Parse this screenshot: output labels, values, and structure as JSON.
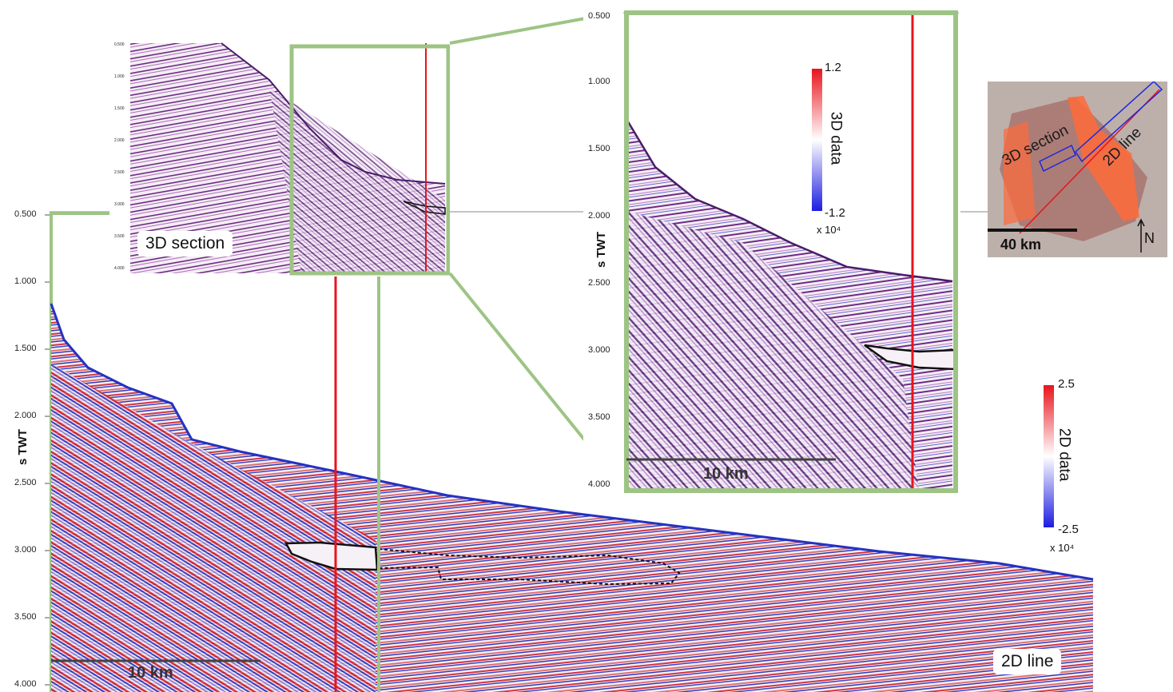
{
  "main_section": {
    "title": "2D line",
    "axis_label": "s TWT",
    "yticks": [
      "0.500",
      "1.000",
      "1.500",
      "2.000",
      "2.500",
      "3.000",
      "3.500",
      "4.000"
    ],
    "scale_bar": "10 km",
    "colorbar": {
      "title": "2D data",
      "max": "2.5",
      "min": "-2.5",
      "exponent": "x 10⁴",
      "colors": [
        "#e8141c",
        "#ffffff",
        "#1c1ce0"
      ]
    }
  },
  "inset_3d_small": {
    "title": "3D section",
    "yticks": [
      "0.500",
      "1.000",
      "1.500",
      "2.000",
      "2.500",
      "3.000",
      "3.500",
      "4.000"
    ]
  },
  "inset_3d_zoom": {
    "axis_label": "s TWT",
    "yticks": [
      "0.500",
      "1.000",
      "1.500",
      "2.000",
      "2.500",
      "3.000",
      "3.500",
      "4.000"
    ],
    "scale_bar": "10 km",
    "colorbar": {
      "title": "3D data",
      "max": "1.2",
      "min": "-1.2",
      "exponent": "x 10⁴",
      "colors": [
        "#e8141c",
        "#ffffff",
        "#1c1ce0"
      ]
    }
  },
  "location_map": {
    "label_3d": "3D section",
    "label_2d": "2D line",
    "scale_bar": "40 km",
    "north": "N"
  },
  "colors": {
    "frame_green": "#9dc484",
    "marker_red": "#e8141c",
    "purple": "#7a2a8a"
  }
}
